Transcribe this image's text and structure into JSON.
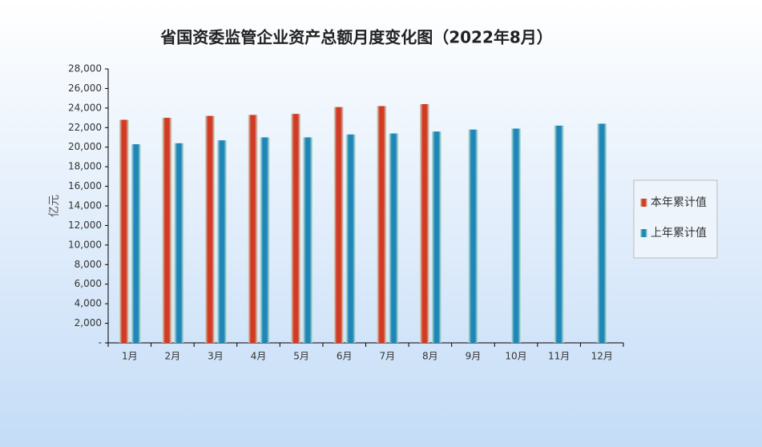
{
  "chart_data": {
    "type": "bar",
    "title": "省国资委监管企业资产总额月度变化图（2022年8月）",
    "y_label": "亿元",
    "categories": [
      "1月",
      "2月",
      "3月",
      "4月",
      "5月",
      "6月",
      "7月",
      "8月",
      "9月",
      "10月",
      "11月",
      "12月"
    ],
    "series": [
      {
        "name": "本年累计值",
        "color": "#d23a24",
        "values": [
          22800,
          23000,
          23200,
          23300,
          23400,
          24100,
          24200,
          24400,
          null,
          null,
          null,
          null
        ]
      },
      {
        "name": "上年累计值",
        "color": "#1f86b8",
        "values": [
          20300,
          20400,
          20700,
          21000,
          21000,
          21300,
          21400,
          21600,
          21800,
          21900,
          22200,
          22400
        ]
      }
    ],
    "ylim": [
      0,
      28000
    ],
    "yticks": [
      {
        "value": 0,
        "label": "-"
      },
      {
        "value": 2000,
        "label": "2,000"
      },
      {
        "value": 4000,
        "label": "4,000"
      },
      {
        "value": 6000,
        "label": "6,000"
      },
      {
        "value": 8000,
        "label": "8,000"
      },
      {
        "value": 10000,
        "label": "10,000"
      },
      {
        "value": 12000,
        "label": "12,000"
      },
      {
        "value": 14000,
        "label": "14,000"
      },
      {
        "value": 16000,
        "label": "16,000"
      },
      {
        "value": 18000,
        "label": "18,000"
      },
      {
        "value": 20000,
        "label": "20,000"
      },
      {
        "value": 22000,
        "label": "22,000"
      },
      {
        "value": 24000,
        "label": "24,000"
      },
      {
        "value": 26000,
        "label": "26,000"
      },
      {
        "value": 28000,
        "label": "28,000"
      }
    ],
    "legend": "right"
  }
}
